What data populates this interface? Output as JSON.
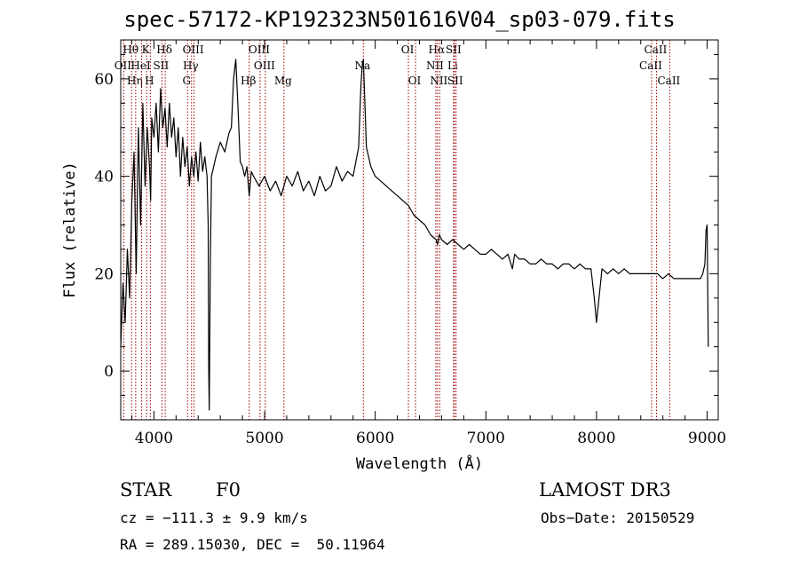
{
  "chart_data": {
    "type": "line",
    "title": "spec-57172-KP192323N501616V04_sp03-079.fits",
    "xlabel": "Wavelength (Å)",
    "ylabel": "Flux (relative)",
    "xlim": [
      3700,
      9100
    ],
    "ylim": [
      -10,
      68
    ],
    "x_ticks": [
      4000,
      5000,
      6000,
      7000,
      8000,
      9000
    ],
    "y_ticks": [
      0,
      20,
      40,
      60
    ],
    "series": [
      {
        "name": "flux",
        "x": [
          3700,
          3720,
          3740,
          3760,
          3780,
          3800,
          3820,
          3840,
          3860,
          3880,
          3900,
          3920,
          3940,
          3960,
          3970,
          3980,
          4000,
          4020,
          4040,
          4060,
          4080,
          4100,
          4120,
          4140,
          4160,
          4180,
          4200,
          4220,
          4240,
          4260,
          4280,
          4300,
          4320,
          4340,
          4360,
          4380,
          4400,
          4420,
          4440,
          4460,
          4480,
          4490,
          4495,
          4500,
          4510,
          4520,
          4560,
          4600,
          4640,
          4680,
          4700,
          4720,
          4740,
          4760,
          4780,
          4800,
          4820,
          4840,
          4861,
          4880,
          4900,
          4950,
          5000,
          5050,
          5100,
          5150,
          5200,
          5250,
          5300,
          5350,
          5400,
          5450,
          5500,
          5550,
          5600,
          5650,
          5700,
          5750,
          5800,
          5850,
          5870,
          5880,
          5893,
          5905,
          5920,
          5940,
          5960,
          5980,
          6000,
          6050,
          6100,
          6150,
          6200,
          6250,
          6300,
          6350,
          6400,
          6450,
          6500,
          6550,
          6563,
          6580,
          6600,
          6650,
          6700,
          6750,
          6800,
          6850,
          6900,
          6950,
          7000,
          7050,
          7100,
          7150,
          7200,
          7240,
          7260,
          7300,
          7350,
          7400,
          7450,
          7500,
          7550,
          7600,
          7650,
          7700,
          7750,
          7800,
          7850,
          7900,
          7950,
          7980,
          8000,
          8050,
          8100,
          8150,
          8200,
          8250,
          8300,
          8350,
          8400,
          8450,
          8500,
          8550,
          8600,
          8650,
          8700,
          8750,
          8800,
          8850,
          8900,
          8940,
          8960,
          8980,
          8990,
          9000,
          9010
        ],
        "y": [
          5,
          18,
          10,
          25,
          15,
          35,
          45,
          20,
          50,
          30,
          55,
          38,
          50,
          42,
          35,
          52,
          48,
          55,
          45,
          58,
          50,
          54,
          46,
          55,
          48,
          52,
          44,
          50,
          40,
          48,
          42,
          46,
          38,
          44,
          40,
          45,
          39,
          47,
          41,
          44,
          40,
          30,
          0,
          -8,
          22,
          40,
          44,
          47,
          45,
          49,
          50,
          60,
          64,
          54,
          43,
          42,
          40,
          42,
          36,
          41,
          40,
          38,
          40,
          37,
          39,
          36,
          40,
          38,
          41,
          37,
          39,
          36,
          40,
          37,
          38,
          42,
          39,
          41,
          40,
          46,
          58,
          62,
          64,
          56,
          46,
          44,
          42,
          41,
          40,
          39,
          38,
          37,
          36,
          35,
          34,
          32,
          31,
          30,
          28,
          27,
          26,
          28,
          27,
          26,
          27,
          26,
          25,
          26,
          25,
          24,
          24,
          25,
          24,
          23,
          24,
          21,
          24,
          23,
          23,
          22,
          22,
          23,
          22,
          22,
          21,
          22,
          22,
          21,
          22,
          21,
          21,
          15,
          10,
          21,
          20,
          21,
          20,
          21,
          20,
          20,
          20,
          20,
          20,
          20,
          19,
          20,
          19,
          19,
          19,
          19,
          19,
          19,
          20,
          22,
          29,
          30,
          5
        ]
      }
    ],
    "lines": [
      {
        "label": "OII",
        "wave": 3727,
        "row": 1
      },
      {
        "label": "Hθ",
        "wave": 3798,
        "row": 0
      },
      {
        "label": "Hη",
        "wave": 3835,
        "row": 2
      },
      {
        "label": "HeI",
        "wave": 3889,
        "row": 1
      },
      {
        "label": "K",
        "wave": 3934,
        "row": 0
      },
      {
        "label": "SII",
        "wave": 4072,
        "row": 1
      },
      {
        "label": "H",
        "wave": 3968,
        "row": 2
      },
      {
        "label": "Hδ",
        "wave": 4102,
        "row": 0
      },
      {
        "label": "OIII",
        "wave": 4363,
        "row": 0
      },
      {
        "label": "Hγ",
        "wave": 4340,
        "row": 1
      },
      {
        "label": "G",
        "wave": 4304,
        "row": 2
      },
      {
        "label": "Hβ",
        "wave": 4861,
        "row": 2
      },
      {
        "label": "OIII",
        "wave": 4959,
        "row": 0
      },
      {
        "label": "OIII",
        "wave": 5007,
        "row": 1
      },
      {
        "label": "Mg",
        "wave": 5175,
        "row": 2
      },
      {
        "label": "Na",
        "wave": 5893,
        "row": 1
      },
      {
        "label": "OI",
        "wave": 6300,
        "row": 0
      },
      {
        "label": "OI",
        "wave": 6364,
        "row": 2
      },
      {
        "label": "Hα",
        "wave": 6563,
        "row": 0
      },
      {
        "label": "NII",
        "wave": 6548,
        "row": 1
      },
      {
        "label": "NII",
        "wave": 6583,
        "row": 2
      },
      {
        "label": "SII",
        "wave": 6716,
        "row": 0
      },
      {
        "label": "Li",
        "wave": 6708,
        "row": 1
      },
      {
        "label": "SII",
        "wave": 6731,
        "row": 2
      },
      {
        "label": "CaII",
        "wave": 8542,
        "row": 0
      },
      {
        "label": "CaII",
        "wave": 8498,
        "row": 1
      },
      {
        "label": "CaII",
        "wave": 8662,
        "row": 2
      }
    ]
  },
  "info": {
    "object_class": "STAR",
    "subclass": "F0",
    "survey": "LAMOST DR3",
    "redshift_line": "cz = −111.3 ± 9.9 km/s",
    "obs_date_line": "Obs−Date: 20150529",
    "coords_line": "RA = 289.15030, DEC =  50.11964"
  }
}
